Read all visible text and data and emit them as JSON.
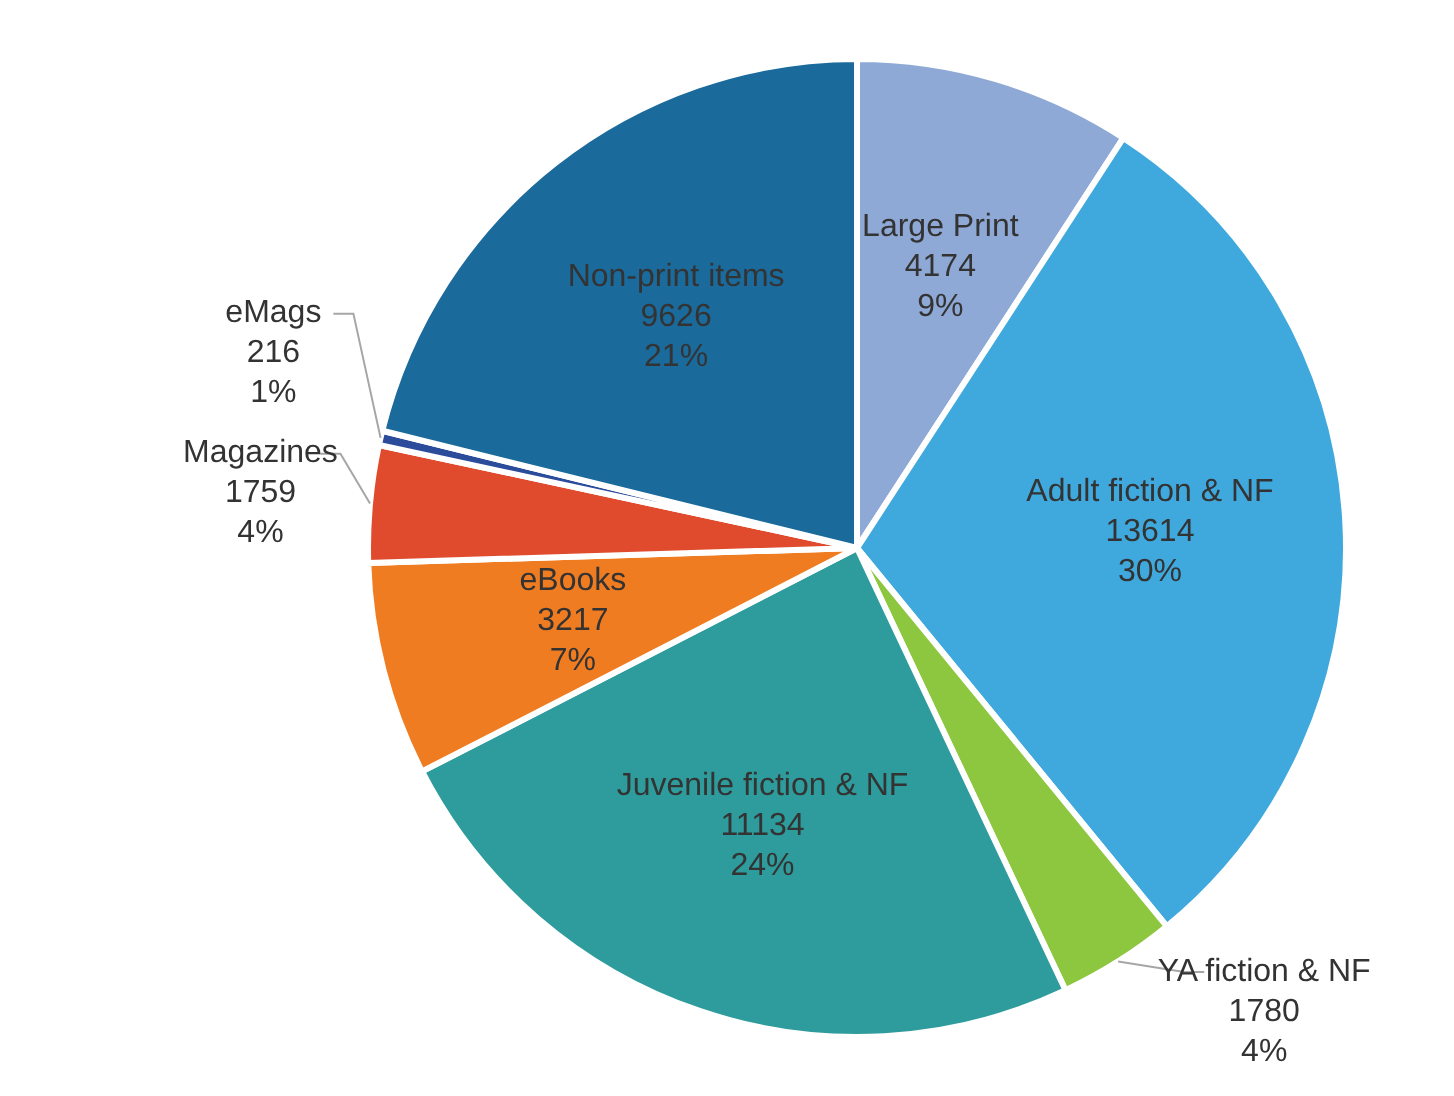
{
  "chart_data": {
    "type": "pie",
    "categories": [
      "Large Print",
      "Adult fiction & NF",
      "YA fiction & NF",
      "Juvenile fiction & NF",
      "eBooks",
      "Magazines",
      "eMags",
      "Non-print items"
    ],
    "values": [
      4174,
      13614,
      1780,
      11134,
      3217,
      1759,
      216,
      9626
    ],
    "value_labels": [
      "4174\n9%",
      "13614\n30%",
      "1780\n4%",
      "11134\n24%",
      "3217\n7%",
      "1759\n4%",
      "216\n1%",
      "9626\n21%"
    ],
    "colors": [
      "#8fa9d6",
      "#3fa9de",
      "#8dc63f",
      "#2e9c9c",
      "#f07c22",
      "#e04b2e",
      "#2b4c9b",
      "#1b6a9c"
    ],
    "legend": false
  }
}
